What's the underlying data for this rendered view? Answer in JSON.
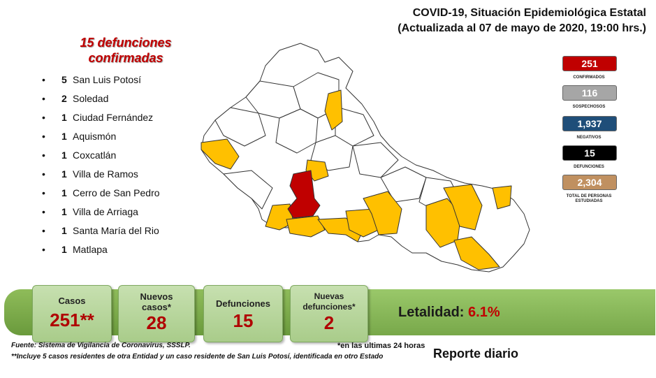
{
  "header": {
    "title_line1": "COVID-19, Situación Epidemiológica Estatal",
    "title_line2": "(Actualizada al 07 de mayo de 2020, 19:00 hrs.)"
  },
  "deaths": {
    "heading_line1": "15 defunciones",
    "heading_line2": "confirmadas",
    "bullet": "•",
    "items": [
      {
        "count": "5",
        "name": "San Luis Potosí"
      },
      {
        "count": "2",
        "name": "Soledad"
      },
      {
        "count": "1",
        "name": "Ciudad Fernández"
      },
      {
        "count": "1",
        "name": "Aquismón"
      },
      {
        "count": "1",
        "name": "Coxcatlán"
      },
      {
        "count": "1",
        "name": "Villa de Ramos"
      },
      {
        "count": "1",
        "name": "Cerro de San Pedro"
      },
      {
        "count": "1",
        "name": "Villa de Arriaga"
      },
      {
        "count": "1",
        "name": "Santa María del Rio"
      },
      {
        "count": "1",
        "name": "Matlapa"
      }
    ]
  },
  "stats": [
    {
      "value": "251",
      "label": "CONFIRMADOS",
      "color": "#c00000"
    },
    {
      "value": "116",
      "label": "SOSPECHOSOS",
      "color": "#a6a6a6"
    },
    {
      "value": "1,937",
      "label": "NEGATIVOS",
      "color": "#1f4e79"
    },
    {
      "value": "15",
      "label": "DEFUNCIONES",
      "color": "#000000"
    },
    {
      "value": "2,304",
      "label": "TOTAL DE PERSONAS ESTUDIADAS",
      "color": "#c09060"
    }
  ],
  "map": {
    "colors": {
      "zero": "#ffffff",
      "cases": "#ffc000",
      "capital": "#c00000",
      "border": "#333333"
    }
  },
  "summary": {
    "cases_label": "Casos",
    "cases_value": "251**",
    "new_cases_label_line1": "Nuevos",
    "new_cases_label_line2": "casos*",
    "new_cases_value": "28",
    "deaths_label": "Defunciones",
    "deaths_value": "15",
    "new_deaths_label_line1": "Nuevas",
    "new_deaths_label_line2": "defunciones*",
    "new_deaths_value": "2",
    "lethality_label": "Letalidad:",
    "lethality_value": "6.1%"
  },
  "footer": {
    "source": "Fuente: Sistema de Vigilancia de Coronavirus, SSSLP.",
    "last24": "*en las ultimas 24 horas",
    "note": "**Incluye 5 casos residentes de otra Entidad y un caso residente de San Luis Potosí, identificada en otro Estado",
    "report": "Reporte diario"
  }
}
